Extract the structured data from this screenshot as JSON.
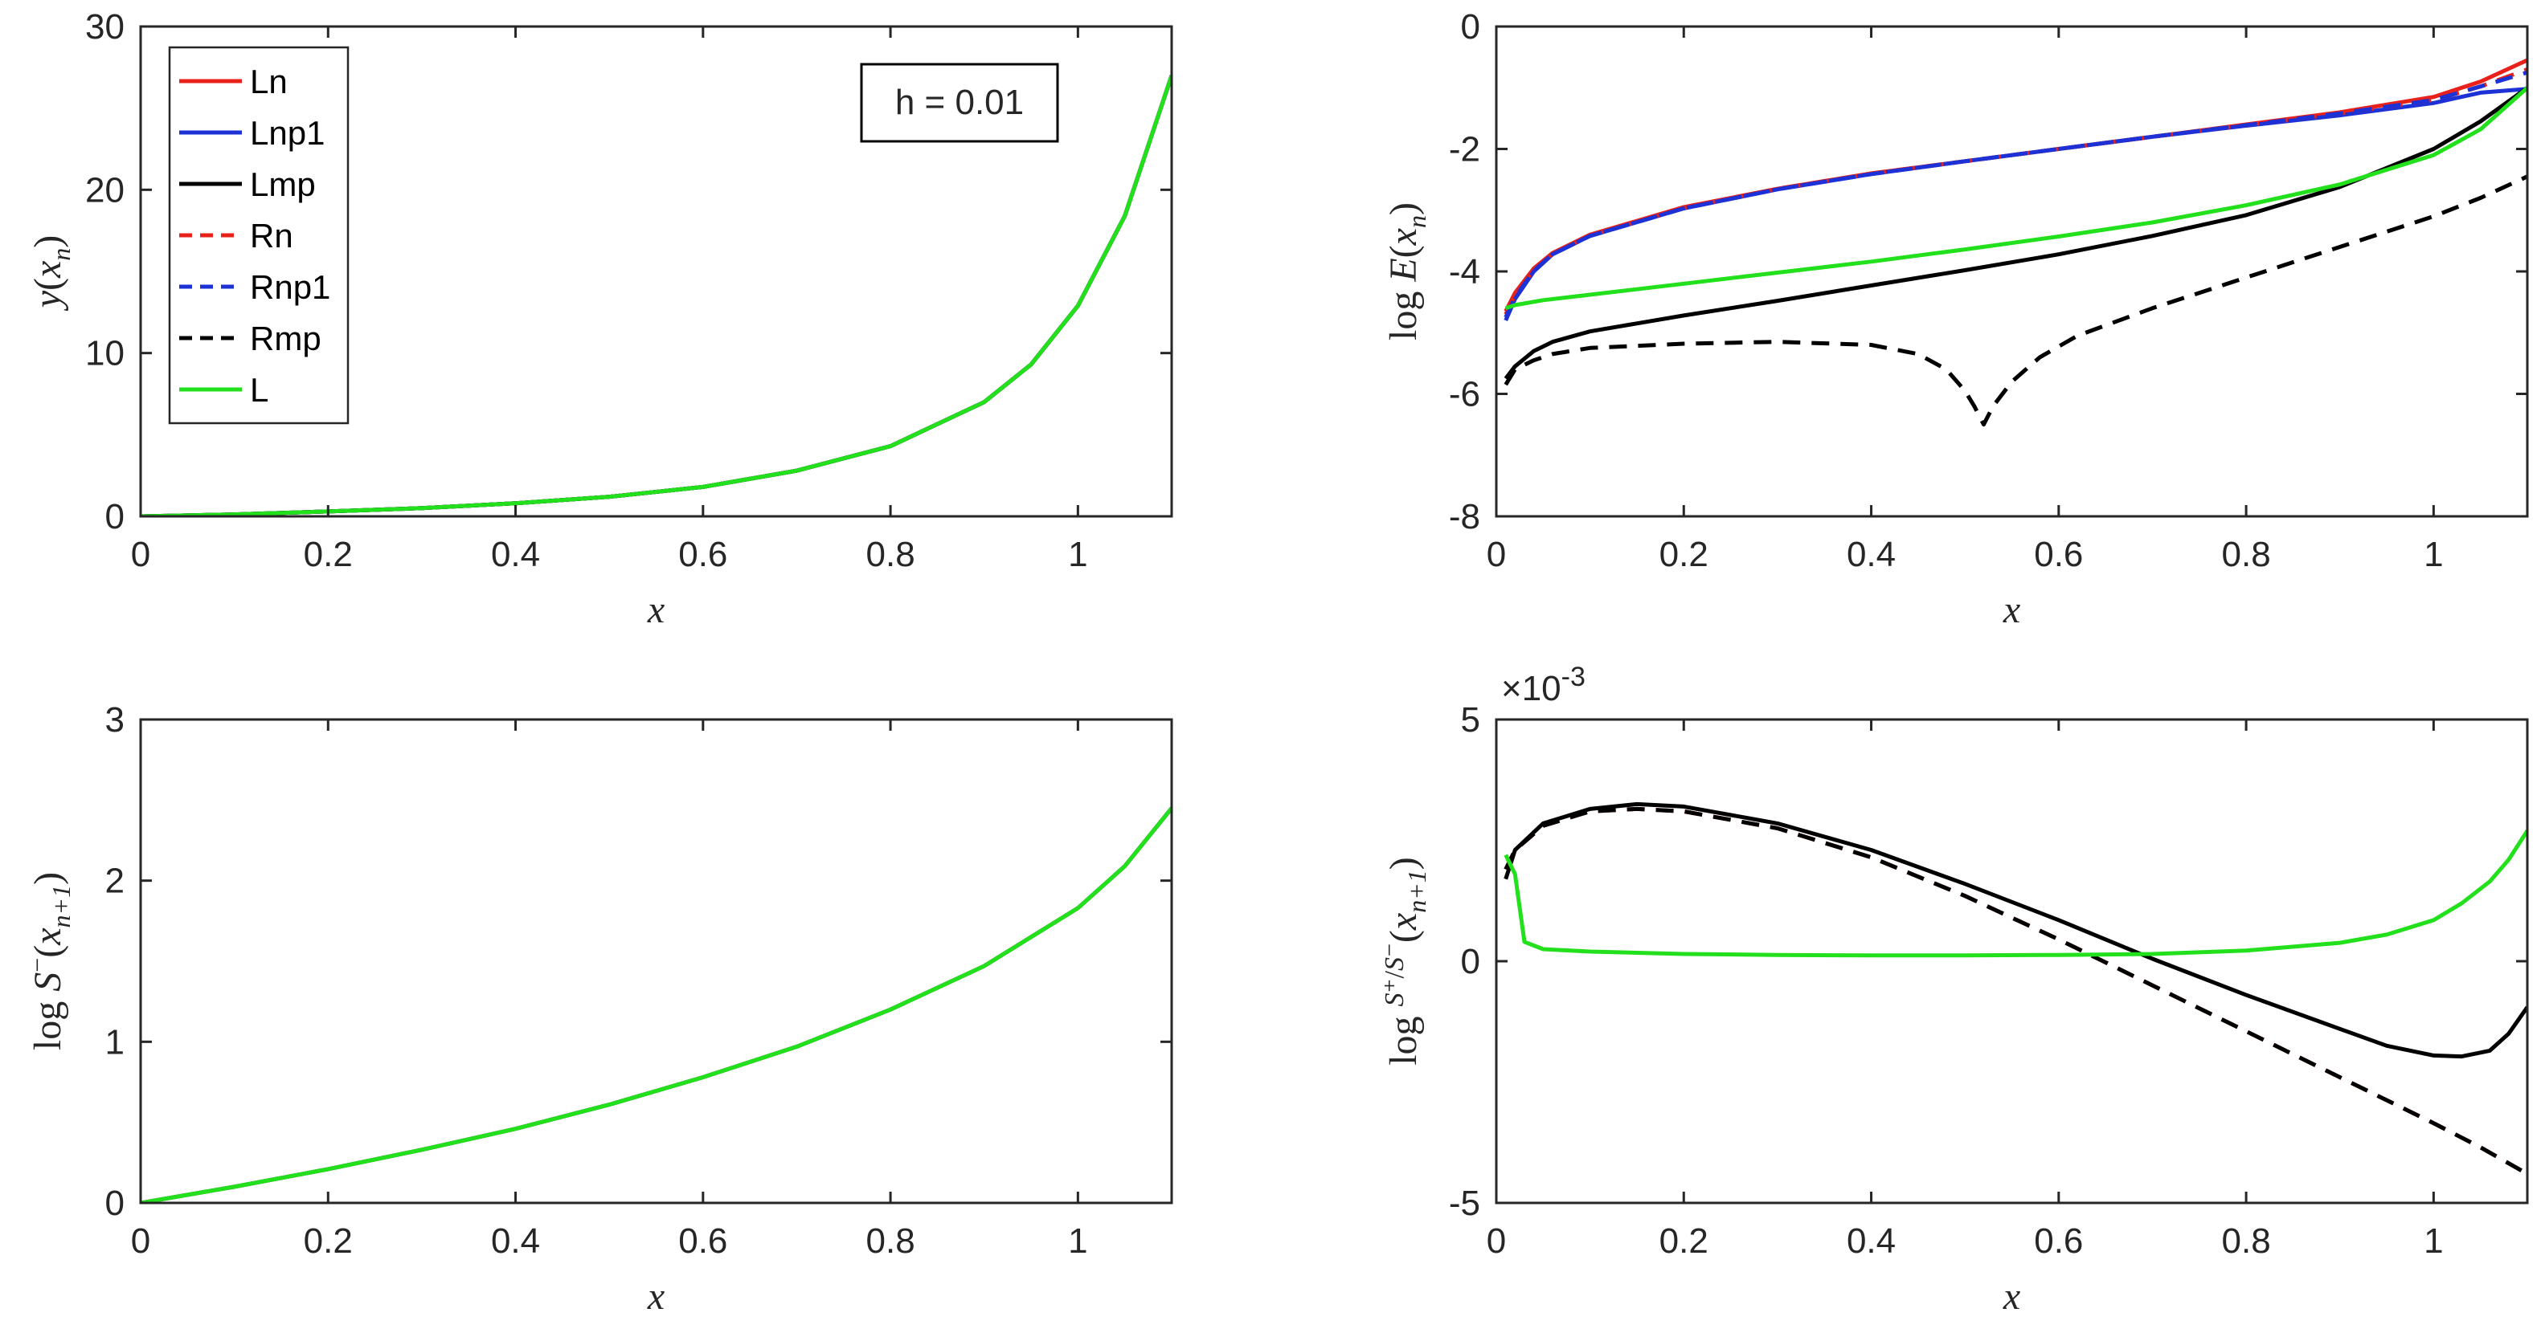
{
  "figure": {
    "annotation_text": "h = 0.01"
  },
  "chart_data": [
    {
      "id": "y-of-x",
      "type": "line",
      "title": "",
      "xlabel": "x",
      "ylabel": {
        "prefix": "",
        "func": "y",
        "arg": "x",
        "argsub": "n",
        "suffix": ""
      },
      "xlim": [
        0,
        1.1
      ],
      "ylim": [
        0,
        30
      ],
      "xticks": [
        0,
        0.2,
        0.4,
        0.6,
        0.8,
        1
      ],
      "xtick_labels": [
        "0",
        "0.2",
        "0.4",
        "0.6",
        "0.8",
        "1"
      ],
      "yticks": [
        0,
        10,
        20,
        30
      ],
      "ytick_labels": [
        "0",
        "10",
        "20",
        "30"
      ],
      "exponent_label": "",
      "legend": {
        "position": "top-left",
        "entries": [
          {
            "label": "Ln",
            "color": "#e8221b",
            "style": "solid"
          },
          {
            "label": "Lnp1",
            "color": "#1c31d6",
            "style": "solid"
          },
          {
            "label": "Lmp",
            "color": "#000000",
            "style": "solid"
          },
          {
            "label": "Rn",
            "color": "#e8221b",
            "style": "dashed"
          },
          {
            "label": "Rnp1",
            "color": "#1c31d6",
            "style": "dashed"
          },
          {
            "label": "Rmp",
            "color": "#000000",
            "style": "dashed"
          },
          {
            "label": "L",
            "color": "#22e01c",
            "style": "solid"
          }
        ]
      },
      "series": [
        {
          "name": "Ln",
          "color": "#e8221b",
          "style": "solid",
          "x": [
            0,
            0.1,
            0.2,
            0.3,
            0.4,
            0.5,
            0.6,
            0.7,
            0.8,
            0.9,
            0.95,
            1.0,
            1.05,
            1.1
          ],
          "y": [
            0,
            0.12,
            0.3,
            0.5,
            0.8,
            1.2,
            1.8,
            2.8,
            4.3,
            7.0,
            9.3,
            12.9,
            18.4,
            27.0
          ]
        },
        {
          "name": "Lnp1",
          "color": "#1c31d6",
          "style": "solid",
          "x": [
            0,
            0.1,
            0.2,
            0.3,
            0.4,
            0.5,
            0.6,
            0.7,
            0.8,
            0.9,
            0.95,
            1.0,
            1.05,
            1.1
          ],
          "y": [
            0,
            0.12,
            0.3,
            0.5,
            0.8,
            1.2,
            1.8,
            2.8,
            4.3,
            7.0,
            9.3,
            12.9,
            18.4,
            27.0
          ]
        },
        {
          "name": "Lmp",
          "color": "#000000",
          "style": "solid",
          "x": [
            0,
            0.1,
            0.2,
            0.3,
            0.4,
            0.5,
            0.6,
            0.7,
            0.8,
            0.9,
            0.95,
            1.0,
            1.05,
            1.1
          ],
          "y": [
            0,
            0.12,
            0.3,
            0.5,
            0.8,
            1.2,
            1.8,
            2.8,
            4.3,
            7.0,
            9.3,
            12.9,
            18.4,
            27.0
          ]
        },
        {
          "name": "L",
          "color": "#22e01c",
          "style": "solid",
          "x": [
            0,
            0.1,
            0.2,
            0.3,
            0.4,
            0.5,
            0.6,
            0.7,
            0.8,
            0.9,
            0.95,
            1.0,
            1.05,
            1.1
          ],
          "y": [
            0,
            0.12,
            0.3,
            0.5,
            0.8,
            1.2,
            1.8,
            2.8,
            4.3,
            7.0,
            9.3,
            12.9,
            18.4,
            27.0
          ]
        }
      ]
    },
    {
      "id": "log-error",
      "type": "line",
      "title": "",
      "xlabel": "x",
      "ylabel": {
        "prefix": "log",
        "func": "E",
        "arg": "x",
        "argsub": "n",
        "suffix": ""
      },
      "xlim": [
        0,
        1.1
      ],
      "ylim": [
        -8,
        0
      ],
      "xticks": [
        0,
        0.2,
        0.4,
        0.6,
        0.8,
        1
      ],
      "xtick_labels": [
        "0",
        "0.2",
        "0.4",
        "0.6",
        "0.8",
        "1"
      ],
      "yticks": [
        -8,
        -6,
        -4,
        -2,
        0
      ],
      "ytick_labels": [
        "-8",
        "-6",
        "-4",
        "-2",
        "0"
      ],
      "exponent_label": "",
      "series": [
        {
          "name": "Ln",
          "color": "#e8221b",
          "style": "solid",
          "x": [
            0.01,
            0.02,
            0.04,
            0.06,
            0.1,
            0.2,
            0.3,
            0.4,
            0.5,
            0.6,
            0.7,
            0.8,
            0.9,
            1.0,
            1.05,
            1.1
          ],
          "y": [
            -4.65,
            -4.35,
            -3.95,
            -3.7,
            -3.4,
            -2.95,
            -2.65,
            -2.4,
            -2.2,
            -2.0,
            -1.8,
            -1.6,
            -1.4,
            -1.15,
            -0.9,
            -0.55
          ]
        },
        {
          "name": "Lnp1",
          "color": "#1c31d6",
          "style": "solid",
          "x": [
            0.01,
            0.02,
            0.04,
            0.06,
            0.1,
            0.2,
            0.3,
            0.4,
            0.5,
            0.6,
            0.7,
            0.8,
            0.9,
            1.0,
            1.05,
            1.1
          ],
          "y": [
            -4.8,
            -4.45,
            -4.0,
            -3.72,
            -3.42,
            -2.97,
            -2.66,
            -2.41,
            -2.2,
            -2.0,
            -1.8,
            -1.62,
            -1.45,
            -1.25,
            -1.08,
            -1.02
          ]
        },
        {
          "name": "Rn",
          "color": "#e8221b",
          "style": "dashed",
          "x": [
            0.01,
            0.02,
            0.04,
            0.06,
            0.1,
            0.2,
            0.3,
            0.4,
            0.5,
            0.6,
            0.7,
            0.8,
            0.9,
            1.0,
            1.05,
            1.1
          ],
          "y": [
            -4.7,
            -4.38,
            -3.97,
            -3.71,
            -3.41,
            -2.96,
            -2.65,
            -2.4,
            -2.2,
            -2.0,
            -1.8,
            -1.61,
            -1.42,
            -1.2,
            -0.98,
            -0.7
          ]
        },
        {
          "name": "Rnp1",
          "color": "#1c31d6",
          "style": "dashed",
          "x": [
            0.01,
            0.02,
            0.04,
            0.06,
            0.1,
            0.2,
            0.3,
            0.4,
            0.5,
            0.6,
            0.7,
            0.8,
            0.9,
            1.0,
            1.05,
            1.1
          ],
          "y": [
            -4.75,
            -4.42,
            -3.99,
            -3.72,
            -3.42,
            -2.97,
            -2.66,
            -2.41,
            -2.2,
            -2.0,
            -1.8,
            -1.61,
            -1.42,
            -1.2,
            -0.98,
            -0.75
          ]
        },
        {
          "name": "Lmp",
          "color": "#000000",
          "style": "solid",
          "x": [
            0.01,
            0.02,
            0.04,
            0.06,
            0.1,
            0.2,
            0.3,
            0.4,
            0.5,
            0.6,
            0.7,
            0.8,
            0.9,
            1.0,
            1.05,
            1.1
          ],
          "y": [
            -5.75,
            -5.55,
            -5.3,
            -5.15,
            -4.98,
            -4.72,
            -4.48,
            -4.23,
            -3.98,
            -3.72,
            -3.42,
            -3.08,
            -2.62,
            -2.0,
            -1.55,
            -1.0
          ]
        },
        {
          "name": "Rmp",
          "color": "#000000",
          "style": "dashed",
          "x": [
            0.01,
            0.02,
            0.04,
            0.06,
            0.1,
            0.2,
            0.3,
            0.4,
            0.45,
            0.48,
            0.5,
            0.51,
            0.52,
            0.53,
            0.55,
            0.58,
            0.62,
            0.7,
            0.8,
            0.9,
            1.0,
            1.05,
            1.1
          ],
          "y": [
            -5.85,
            -5.6,
            -5.45,
            -5.35,
            -5.25,
            -5.18,
            -5.15,
            -5.2,
            -5.35,
            -5.6,
            -5.95,
            -6.2,
            -6.5,
            -6.2,
            -5.8,
            -5.4,
            -5.05,
            -4.6,
            -4.1,
            -3.6,
            -3.1,
            -2.8,
            -2.45
          ]
        },
        {
          "name": "L",
          "color": "#22e01c",
          "style": "solid",
          "x": [
            0.01,
            0.02,
            0.05,
            0.1,
            0.2,
            0.3,
            0.4,
            0.5,
            0.6,
            0.7,
            0.8,
            0.9,
            1.0,
            1.05,
            1.1
          ],
          "y": [
            -4.6,
            -4.55,
            -4.47,
            -4.38,
            -4.2,
            -4.02,
            -3.84,
            -3.64,
            -3.43,
            -3.2,
            -2.92,
            -2.58,
            -2.1,
            -1.68,
            -1.0
          ]
        }
      ]
    },
    {
      "id": "log-s-minus",
      "type": "line",
      "title": "",
      "xlabel": "x",
      "ylabel": {
        "prefix": "log",
        "func": "S",
        "sup": "−",
        "arg": "x",
        "argsub": "n+1",
        "suffix": ""
      },
      "xlim": [
        0,
        1.1
      ],
      "ylim": [
        0,
        3
      ],
      "xticks": [
        0,
        0.2,
        0.4,
        0.6,
        0.8,
        1
      ],
      "xtick_labels": [
        "0",
        "0.2",
        "0.4",
        "0.6",
        "0.8",
        "1"
      ],
      "yticks": [
        0,
        1,
        2,
        3
      ],
      "ytick_labels": [
        "0",
        "1",
        "2",
        "3"
      ],
      "exponent_label": "",
      "series": [
        {
          "name": "Lmp",
          "color": "#000000",
          "style": "solid",
          "x": [
            0,
            0.1,
            0.2,
            0.3,
            0.4,
            0.5,
            0.6,
            0.7,
            0.8,
            0.9,
            1.0,
            1.05,
            1.1
          ],
          "y": [
            0,
            0.1,
            0.21,
            0.33,
            0.46,
            0.61,
            0.78,
            0.97,
            1.2,
            1.47,
            1.83,
            2.09,
            2.45
          ]
        },
        {
          "name": "L",
          "color": "#22e01c",
          "style": "solid",
          "x": [
            0,
            0.1,
            0.2,
            0.3,
            0.4,
            0.5,
            0.6,
            0.7,
            0.8,
            0.9,
            1.0,
            1.05,
            1.1
          ],
          "y": [
            0,
            0.1,
            0.21,
            0.33,
            0.46,
            0.61,
            0.78,
            0.97,
            1.2,
            1.47,
            1.83,
            2.09,
            2.45
          ]
        }
      ]
    },
    {
      "id": "log-s-ratio",
      "type": "line",
      "title": "",
      "xlabel": "x",
      "ylabel": {
        "prefix": "log",
        "frac_num": "S⁺",
        "frac_den": "S⁻",
        "arg": "x",
        "argsub": "n+1",
        "suffix": ""
      },
      "xlim": [
        0,
        1.1
      ],
      "ylim": [
        -5,
        5
      ],
      "xticks": [
        0,
        0.2,
        0.4,
        0.6,
        0.8,
        1
      ],
      "xtick_labels": [
        "0",
        "0.2",
        "0.4",
        "0.6",
        "0.8",
        "1"
      ],
      "yticks": [
        -5,
        0,
        5
      ],
      "ytick_labels": [
        "-5",
        "0",
        "5"
      ],
      "exponent_label": "×10",
      "exponent_power": "-3",
      "series": [
        {
          "name": "Rn",
          "color": "#e8221b",
          "style": "dashed",
          "x": [
            0.01,
            0.02,
            0.05,
            0.1,
            0.15,
            0.2,
            0.3,
            0.4,
            0.5,
            0.6,
            0.7,
            0.8,
            0.9,
            1.0,
            1.05,
            1.1
          ],
          "y": [
            1.9,
            2.3,
            2.8,
            3.1,
            3.15,
            3.1,
            2.75,
            2.15,
            1.35,
            0.45,
            -0.5,
            -1.45,
            -2.4,
            -3.35,
            -3.85,
            -4.4
          ]
        },
        {
          "name": "Rmp",
          "color": "#000000",
          "style": "dashed",
          "x": [
            0.01,
            0.02,
            0.05,
            0.1,
            0.15,
            0.2,
            0.3,
            0.4,
            0.5,
            0.6,
            0.7,
            0.8,
            0.9,
            1.0,
            1.05,
            1.1
          ],
          "y": [
            1.9,
            2.3,
            2.8,
            3.1,
            3.15,
            3.1,
            2.75,
            2.15,
            1.35,
            0.45,
            -0.5,
            -1.45,
            -2.4,
            -3.35,
            -3.85,
            -4.4
          ]
        },
        {
          "name": "Lmp",
          "color": "#000000",
          "style": "solid",
          "x": [
            0.01,
            0.02,
            0.05,
            0.1,
            0.15,
            0.2,
            0.3,
            0.4,
            0.5,
            0.6,
            0.7,
            0.8,
            0.9,
            0.95,
            1.0,
            1.03,
            1.06,
            1.08,
            1.1
          ],
          "y": [
            1.7,
            2.3,
            2.85,
            3.15,
            3.25,
            3.2,
            2.85,
            2.3,
            1.6,
            0.85,
            0.05,
            -0.7,
            -1.4,
            -1.75,
            -1.95,
            -1.97,
            -1.85,
            -1.5,
            -0.95
          ]
        },
        {
          "name": "L",
          "color": "#22e01c",
          "style": "solid",
          "x": [
            0.01,
            0.015,
            0.02,
            0.03,
            0.05,
            0.1,
            0.2,
            0.3,
            0.4,
            0.5,
            0.6,
            0.7,
            0.8,
            0.9,
            0.95,
            1.0,
            1.03,
            1.06,
            1.08,
            1.1
          ],
          "y": [
            2.2,
            2.0,
            1.8,
            0.4,
            0.25,
            0.2,
            0.15,
            0.13,
            0.12,
            0.12,
            0.13,
            0.15,
            0.22,
            0.38,
            0.55,
            0.85,
            1.2,
            1.65,
            2.1,
            2.7
          ]
        }
      ]
    }
  ]
}
